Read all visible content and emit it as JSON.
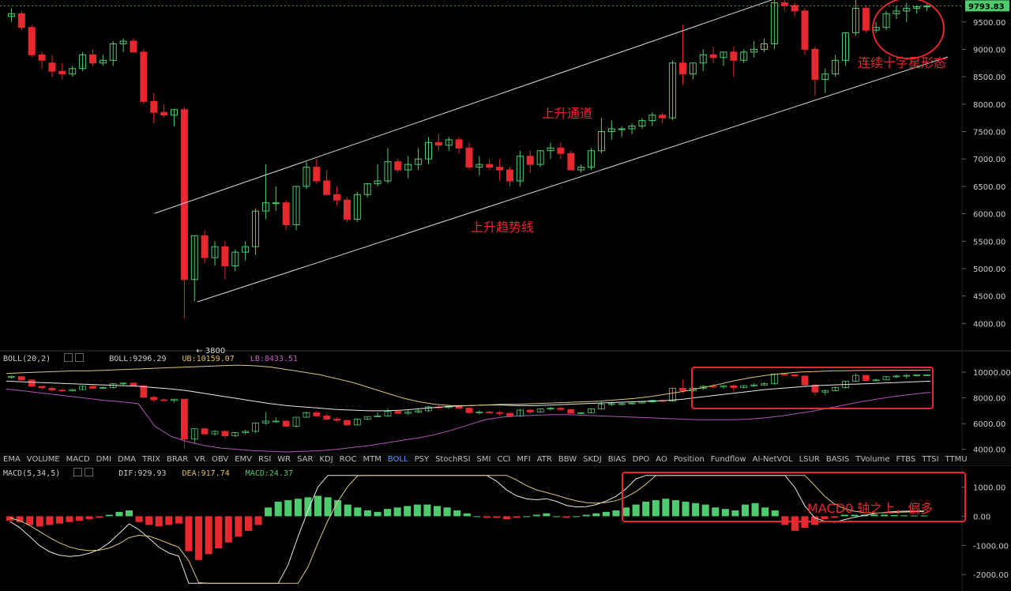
{
  "colors": {
    "up": "#4ecb6e",
    "down": "#e5292f",
    "channel": "#d8d8d8",
    "mid": "#cfc0a0",
    "lower": "#b054b8",
    "annotation": "#e5292f",
    "active_tab": "#5e8fff"
  },
  "price_label": "9793.83",
  "low_label": "← 3800",
  "boll_header": {
    "name": "BOLL(20,2)",
    "boll": "BOLL:9296.29",
    "ub": "UB:10159.07",
    "lb": "LB:8433.51"
  },
  "macd_header": {
    "name": "MACD(5,34,5)",
    "dif": "DIF:929.93",
    "dea": "DEA:917.74",
    "macd": "MACD:24.37"
  },
  "tabs": [
    "EMA",
    "VOLUME",
    "MACD",
    "DMI",
    "DMA",
    "TRIX",
    "BRAR",
    "VR",
    "OBV",
    "EMV",
    "RSI",
    "WR",
    "SAR",
    "KDJ",
    "ROC",
    "MTM",
    "BOLL",
    "PSY",
    "StochRSI",
    "SMI",
    "CCI",
    "MFI",
    "ATR",
    "BBW",
    "SKDJ",
    "BIAS",
    "DPO",
    "AO",
    "Position",
    "Fundflow",
    "AI-NetVOL",
    "LSUR",
    "BASIS",
    "TVolume",
    "FTBS",
    "TTSI",
    "TTMU"
  ],
  "active_tab": "BOLL",
  "annotations": {
    "channel": "上升通道",
    "trendline": "上升趋势线",
    "doji": "连续十字星形态",
    "macd_note": "MACD0 轴之上，偏多"
  },
  "chart_data": [
    {
      "type": "candlestick",
      "title": "",
      "ylim": [
        3500,
        9900
      ],
      "yticks": [
        4000,
        4500,
        5000,
        5500,
        6000,
        6500,
        7000,
        7500,
        8000,
        8500,
        9000,
        9500
      ],
      "last_price": 9793.83,
      "low_marker": 3800,
      "candles": [
        [
          9600,
          9750,
          9500,
          9650
        ],
        [
          9650,
          9700,
          9350,
          9400
        ],
        [
          9400,
          9450,
          8850,
          8900
        ],
        [
          8900,
          8950,
          8650,
          8800
        ],
        [
          8750,
          8900,
          8500,
          8600
        ],
        [
          8600,
          8750,
          8450,
          8550
        ],
        [
          8550,
          8700,
          8500,
          8650
        ],
        [
          8650,
          8950,
          8600,
          8900
        ],
        [
          8900,
          9000,
          8700,
          8750
        ],
        [
          8750,
          8900,
          8700,
          8800
        ],
        [
          8800,
          9150,
          8700,
          9100
        ],
        [
          9100,
          9200,
          8950,
          9150
        ],
        [
          9150,
          9200,
          8950,
          8950
        ],
        [
          8950,
          9000,
          8000,
          8050
        ],
        [
          8050,
          8200,
          7650,
          7850
        ],
        [
          7850,
          8000,
          7750,
          7800
        ],
        [
          7800,
          7900,
          7600,
          7900
        ],
        [
          7900,
          7950,
          4100,
          4800
        ],
        [
          4800,
          5600,
          4400,
          5600
        ],
        [
          5600,
          5700,
          5100,
          5200
        ],
        [
          5200,
          5500,
          5050,
          5400
        ],
        [
          5400,
          5500,
          4800,
          5050
        ],
        [
          5050,
          5350,
          4950,
          5300
        ],
        [
          5300,
          5500,
          5150,
          5400
        ],
        [
          5400,
          6100,
          5250,
          6050
        ],
        [
          6050,
          6900,
          5900,
          6200
        ],
        [
          6200,
          6500,
          6050,
          6200
        ],
        [
          6200,
          6250,
          5700,
          5800
        ],
        [
          5800,
          6500,
          5700,
          6500
        ],
        [
          6500,
          6950,
          6450,
          6850
        ],
        [
          6850,
          7000,
          6550,
          6600
        ],
        [
          6600,
          6800,
          6350,
          6350
        ],
        [
          6350,
          6500,
          6150,
          6250
        ],
        [
          6250,
          6300,
          5850,
          5900
        ],
        [
          5900,
          6400,
          5850,
          6350
        ],
        [
          6350,
          6550,
          6300,
          6550
        ],
        [
          6550,
          6900,
          6500,
          6600
        ],
        [
          6600,
          7200,
          6550,
          6950
        ],
        [
          6950,
          7000,
          6750,
          6800
        ],
        [
          6800,
          7050,
          6650,
          6900
        ],
        [
          6900,
          7200,
          6800,
          7000
        ],
        [
          7000,
          7400,
          6900,
          7300
        ],
        [
          7300,
          7450,
          7150,
          7250
        ],
        [
          7250,
          7400,
          7150,
          7350
        ],
        [
          7350,
          7400,
          7100,
          7200
        ],
        [
          7200,
          7300,
          6800,
          6850
        ],
        [
          6850,
          7050,
          6700,
          6900
        ],
        [
          6900,
          7000,
          6800,
          6850
        ],
        [
          6850,
          7000,
          6600,
          6800
        ],
        [
          6800,
          6850,
          6500,
          6600
        ],
        [
          6600,
          7150,
          6500,
          7050
        ],
        [
          7050,
          7150,
          6750,
          6900
        ],
        [
          6900,
          7150,
          6850,
          7150
        ],
        [
          7150,
          7300,
          7000,
          7200
        ],
        [
          7200,
          7300,
          7000,
          7100
        ],
        [
          7100,
          7150,
          6800,
          6800
        ],
        [
          6800,
          6900,
          6750,
          6850
        ],
        [
          6850,
          7200,
          6800,
          7150
        ],
        [
          7150,
          7750,
          7100,
          7500
        ],
        [
          7500,
          7700,
          7350,
          7550
        ],
        [
          7550,
          7600,
          7400,
          7550
        ],
        [
          7550,
          7650,
          7450,
          7600
        ],
        [
          7600,
          7750,
          7550,
          7700
        ],
        [
          7700,
          7850,
          7600,
          7800
        ],
        [
          7800,
          7850,
          7650,
          7750
        ],
        [
          7750,
          8800,
          7700,
          8750
        ],
        [
          8750,
          9450,
          8350,
          8550
        ],
        [
          8550,
          8750,
          8450,
          8750
        ],
        [
          8750,
          9000,
          8600,
          8900
        ],
        [
          8900,
          9050,
          8750,
          8850
        ],
        [
          8850,
          8950,
          8700,
          8950
        ],
        [
          8950,
          9050,
          8500,
          8800
        ],
        [
          8800,
          9000,
          8750,
          8950
        ],
        [
          8950,
          9150,
          8850,
          9000
        ],
        [
          9000,
          9200,
          8950,
          9100
        ],
        [
          9100,
          9900,
          9000,
          9850
        ],
        [
          9850,
          9900,
          9700,
          9800
        ],
        [
          9800,
          9850,
          9600,
          9700
        ],
        [
          9700,
          9750,
          8900,
          9000
        ],
        [
          9000,
          9050,
          8150,
          8450
        ],
        [
          8450,
          8650,
          8200,
          8550
        ],
        [
          8550,
          8900,
          8500,
          8800
        ],
        [
          8800,
          9300,
          8700,
          9300
        ],
        [
          9300,
          9900,
          9250,
          9750
        ],
        [
          9750,
          9800,
          9300,
          9350
        ],
        [
          9350,
          9500,
          9300,
          9400
        ],
        [
          9400,
          9700,
          9350,
          9650
        ],
        [
          9650,
          9800,
          9550,
          9700
        ],
        [
          9700,
          9850,
          9500,
          9750
        ],
        [
          9750,
          9800,
          9650,
          9780
        ],
        [
          9780,
          9820,
          9700,
          9790
        ]
      ]
    },
    {
      "type": "line",
      "title": "BOLL(20,2)",
      "ylim": [
        3800,
        10800
      ],
      "yticks": [
        4000,
        6000,
        8000,
        10000
      ],
      "series": [
        {
          "name": "BOLL",
          "values": [
            9300,
            9250,
            9200,
            9150,
            9100,
            9050,
            9000,
            8950,
            8900,
            8800,
            8700,
            8550,
            8350,
            8150,
            7950,
            7750,
            7550,
            7400,
            7300,
            7200,
            7100,
            7050,
            7000,
            7000,
            7050,
            7150,
            7250,
            7350,
            7400,
            7450,
            7450,
            7400,
            7400,
            7450,
            7500,
            7550,
            7600,
            7650,
            7700,
            7750,
            7800,
            7900,
            8050,
            8200,
            8350,
            8500,
            8650,
            8750,
            8850,
            8950,
            9000,
            9050,
            9100,
            9150,
            9200,
            9250,
            9300
          ]
        },
        {
          "name": "UB",
          "values": [
            9900,
            9950,
            10000,
            10050,
            10100,
            10100,
            10150,
            10200,
            10250,
            10300,
            10350,
            10400,
            10450,
            10500,
            10550,
            10500,
            10400,
            10200,
            10000,
            9800,
            9500,
            9200,
            8800,
            8400,
            8000,
            7700,
            7500,
            7400,
            7400,
            7450,
            7500,
            7500,
            7550,
            7600,
            7650,
            7700,
            7750,
            7850,
            7950,
            8100,
            8300,
            8500,
            8750,
            9000,
            9300,
            9550,
            9750,
            9900,
            10000,
            10050,
            10100,
            10120,
            10130,
            10140,
            10150,
            10155,
            10159
          ]
        },
        {
          "name": "LB",
          "values": [
            8700,
            8550,
            8400,
            8250,
            8100,
            7950,
            7800,
            7700,
            7550,
            5800,
            5000,
            4600,
            4300,
            4100,
            4000,
            3900,
            3850,
            3800,
            3850,
            3900,
            4000,
            4150,
            4300,
            4500,
            4700,
            4900,
            5150,
            5500,
            5900,
            6300,
            6500,
            6600,
            6650,
            6700,
            6700,
            6650,
            6600,
            6550,
            6500,
            6450,
            6400,
            6350,
            6300,
            6300,
            6300,
            6350,
            6450,
            6600,
            6800,
            7000,
            7250,
            7500,
            7750,
            7950,
            8150,
            8300,
            8433
          ]
        }
      ]
    },
    {
      "type": "bar+line",
      "title": "MACD(5,34,5)",
      "ylim": [
        -2400,
        1500
      ],
      "yticks": [
        -2000,
        -1000,
        0,
        1000
      ],
      "histogram": [
        -150,
        -200,
        -300,
        -350,
        -300,
        -250,
        -200,
        -150,
        -100,
        -50,
        50,
        150,
        200,
        -200,
        -300,
        -350,
        -300,
        -250,
        -1200,
        -1500,
        -1300,
        -1100,
        -900,
        -700,
        -500,
        -300,
        300,
        500,
        550,
        600,
        650,
        700,
        650,
        550,
        400,
        300,
        200,
        150,
        250,
        300,
        350,
        400,
        400,
        350,
        300,
        200,
        100,
        0,
        -50,
        -50,
        -100,
        -50,
        0,
        50,
        100,
        0,
        -50,
        0,
        50,
        100,
        150,
        200,
        300,
        400,
        500,
        550,
        600,
        550,
        500,
        450,
        400,
        300,
        250,
        200,
        400,
        450,
        300,
        200,
        -300,
        -500,
        -400,
        -300,
        -100,
        -50,
        50,
        50,
        50,
        50,
        50,
        40,
        30,
        25,
        24
      ]
    }
  ]
}
